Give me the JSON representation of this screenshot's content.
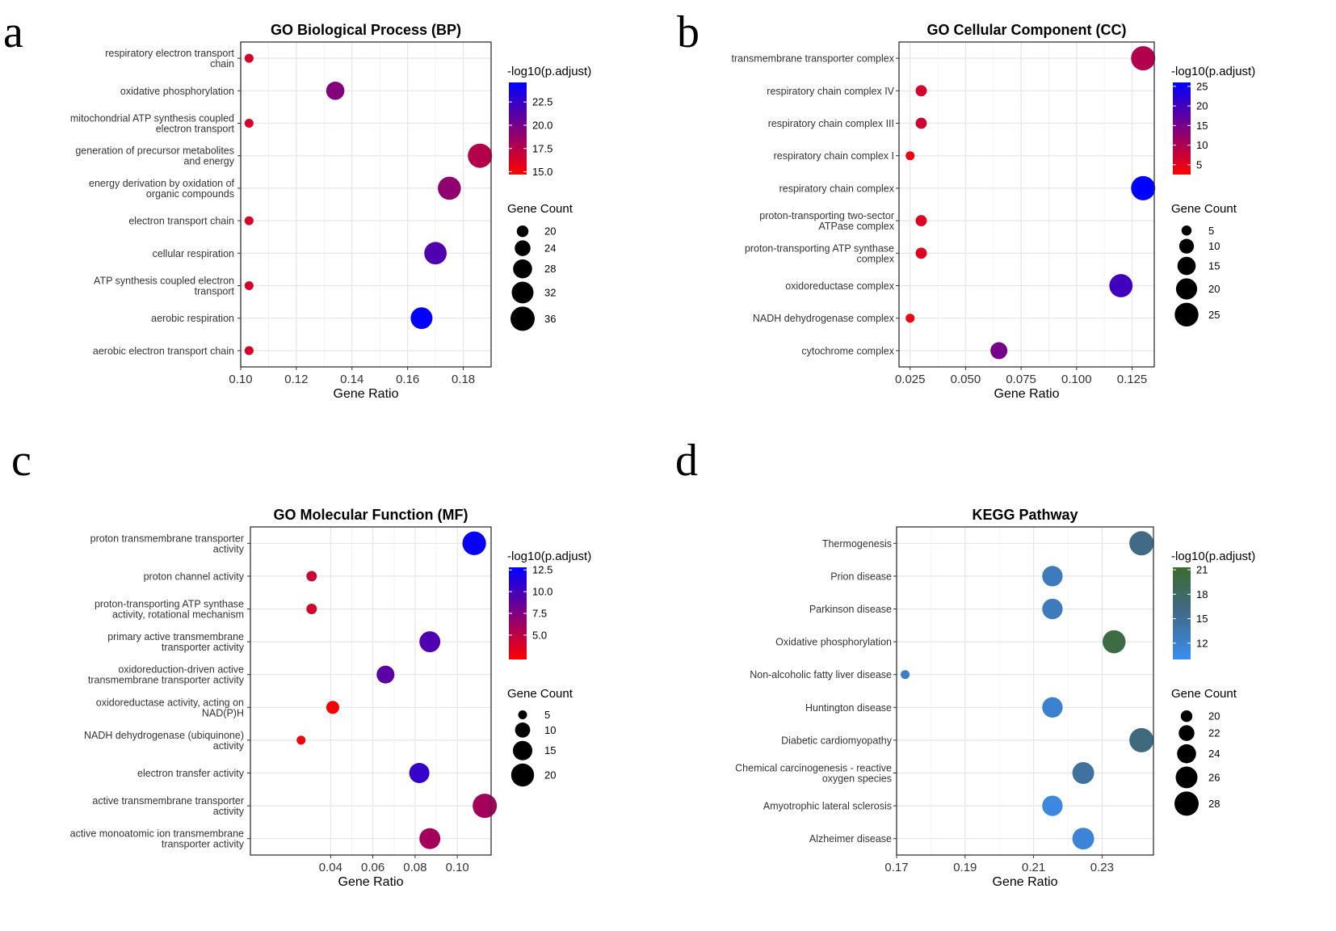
{
  "chart_data": [
    {
      "type": "scatter",
      "panel_label": "a",
      "title": "GO Biological Process (BP)",
      "xlabel": "Gene Ratio",
      "xlim": [
        0.1,
        0.19
      ],
      "xticks": [
        0.1,
        0.12,
        0.14,
        0.16,
        0.18
      ],
      "xtick_labels": [
        "0.10",
        "0.12",
        "0.14",
        "0.16",
        "0.18"
      ],
      "categories": [
        [
          "respiratory electron transport",
          "chain"
        ],
        [
          "oxidative phosphorylation"
        ],
        [
          "mitochondrial ATP synthesis coupled",
          "electron transport"
        ],
        [
          "generation of precursor metabolites",
          "and energy"
        ],
        [
          "energy derivation by oxidation of",
          "organic compounds"
        ],
        [
          "electron transport chain"
        ],
        [
          "cellular respiration"
        ],
        [
          "ATP synthesis coupled electron",
          "transport"
        ],
        [
          "aerobic respiration"
        ],
        [
          "aerobic electron transport chain"
        ]
      ],
      "x": [
        0.103,
        0.134,
        0.103,
        0.186,
        0.175,
        0.103,
        0.17,
        0.103,
        0.165,
        0.103
      ],
      "count": [
        18,
        27,
        18,
        36,
        34,
        18,
        33,
        18,
        32,
        18
      ],
      "color_value": [
        16.2,
        19.5,
        16.3,
        17.6,
        19.0,
        16.2,
        21.5,
        16.3,
        24.5,
        16.2
      ],
      "color_legend": {
        "title": "-log10(p.adjust)",
        "min": 14.7,
        "max": 24.6,
        "ticks": [
          15.0,
          17.5,
          20.0,
          22.5
        ],
        "tick_labels": [
          "15.0",
          "17.5",
          "20.0",
          "22.5"
        ],
        "low_color": "#ff0000",
        "high_color": "#0000ff"
      },
      "size_legend": {
        "title": "Gene Count",
        "values": [
          20,
          24,
          28,
          32,
          36
        ],
        "labels": [
          "20",
          "24",
          "28",
          "32",
          "36"
        ],
        "range": [
          18,
          36
        ]
      }
    },
    {
      "type": "scatter",
      "panel_label": "b",
      "title": "GO Cellular Component (CC)",
      "xlabel": "Gene Ratio",
      "xlim": [
        0.02,
        0.135
      ],
      "xticks": [
        0.025,
        0.05,
        0.075,
        0.1,
        0.125
      ],
      "xtick_labels": [
        "0.025",
        "0.050",
        "0.075",
        "0.100",
        "0.125"
      ],
      "categories": [
        [
          "transmembrane transporter complex"
        ],
        [
          "respiratory chain complex IV"
        ],
        [
          "respiratory chain complex III"
        ],
        [
          "respiratory chain complex I"
        ],
        [
          "respiratory chain complex"
        ],
        [
          "proton-transporting two-sector",
          "ATPase complex"
        ],
        [
          "proton-transporting ATP synthase",
          "complex"
        ],
        [
          "oxidoreductase complex"
        ],
        [
          "NADH dehydrogenase complex"
        ],
        [
          "cytochrome complex"
        ]
      ],
      "x": [
        0.13,
        0.03,
        0.03,
        0.025,
        0.13,
        0.03,
        0.03,
        0.12,
        0.025,
        0.065
      ],
      "count": [
        26,
        6,
        6,
        4,
        26,
        6,
        6,
        24,
        4,
        13
      ],
      "color_value": [
        9.5,
        6.5,
        7.0,
        4.0,
        26.0,
        5.5,
        5.5,
        20.0,
        4.0,
        15.0
      ],
      "color_legend": {
        "title": "-log10(p.adjust)",
        "min": 2.5,
        "max": 26.0,
        "ticks": [
          5,
          10,
          15,
          20,
          25
        ],
        "tick_labels": [
          "5",
          "10",
          "15",
          "20",
          "25"
        ],
        "low_color": "#ff0000",
        "high_color": "#0000ff"
      },
      "size_legend": {
        "title": "Gene Count",
        "values": [
          5,
          10,
          15,
          20,
          25
        ],
        "labels": [
          "5",
          "10",
          "15",
          "20",
          "25"
        ],
        "range": [
          4,
          26
        ]
      }
    },
    {
      "type": "scatter",
      "panel_label": "c",
      "title": "GO Molecular Function (MF)",
      "xlabel": "Gene Ratio",
      "xlim": [
        0.002,
        0.116
      ],
      "xticks": [
        0.04,
        0.06,
        0.08,
        0.1
      ],
      "xtick_labels": [
        "0.04",
        "0.06",
        "0.08",
        "0.10"
      ],
      "categories": [
        [
          "proton transmembrane transporter",
          "activity"
        ],
        [
          "proton channel activity"
        ],
        [
          "proton-transporting ATP synthase",
          "activity, rotational mechanism"
        ],
        [
          "primary active transmembrane",
          "transporter activity"
        ],
        [
          "oxidoreduction-driven active",
          "transmembrane transporter activity"
        ],
        [
          "oxidoreductase activity, acting on",
          "NAD(P)H"
        ],
        [
          "NADH dehydrogenase (ubiquinone)",
          "activity"
        ],
        [
          "electron transfer activity"
        ],
        [
          "active transmembrane transporter",
          "activity"
        ],
        [
          "active monoatomic ion transmembrane",
          "transporter activity"
        ]
      ],
      "x": [
        0.108,
        0.031,
        0.031,
        0.087,
        0.066,
        0.041,
        0.026,
        0.082,
        0.113,
        0.087
      ],
      "count": [
        21,
        6,
        6,
        17,
        13,
        8,
        5,
        16,
        22,
        17
      ],
      "color_value": [
        12.5,
        4.5,
        4.0,
        9.5,
        9.0,
        2.5,
        2.5,
        10.5,
        6.0,
        6.0
      ],
      "color_legend": {
        "title": "-log10(p.adjust)",
        "min": 2.2,
        "max": 12.8,
        "ticks": [
          5.0,
          7.5,
          10.0,
          12.5
        ],
        "tick_labels": [
          "5.0",
          "7.5",
          "10.0",
          "12.5"
        ],
        "low_color": "#ff0000",
        "high_color": "#0000ff"
      },
      "size_legend": {
        "title": "Gene Count",
        "values": [
          5,
          10,
          15,
          20
        ],
        "labels": [
          "5",
          "10",
          "15",
          "20"
        ],
        "range": [
          5,
          22
        ]
      }
    },
    {
      "type": "scatter",
      "panel_label": "d",
      "title": "KEGG Pathway",
      "xlabel": "Gene Ratio",
      "xlim": [
        0.17,
        0.245
      ],
      "xticks": [
        0.17,
        0.19,
        0.21,
        0.23
      ],
      "xtick_labels": [
        "0.17",
        "0.19",
        "0.21",
        "0.23"
      ],
      "categories": [
        [
          "Thermogenesis"
        ],
        [
          "Prion disease"
        ],
        [
          "Parkinson disease"
        ],
        [
          "Oxidative phosphorylation"
        ],
        [
          "Non-alcoholic fatty liver disease"
        ],
        [
          "Huntington disease"
        ],
        [
          "Diabetic cardiomyopathy"
        ],
        [
          "Chemical carcinogenesis - reactive",
          "oxygen species"
        ],
        [
          "Amyotrophic lateral sclerosis"
        ],
        [
          "Alzheimer disease"
        ]
      ],
      "x": [
        0.2415,
        0.2155,
        0.2155,
        0.2335,
        0.1725,
        0.2155,
        0.2415,
        0.2245,
        0.2155,
        0.2245
      ],
      "count": [
        28,
        25,
        25,
        27,
        19,
        25,
        28,
        26,
        25,
        26
      ],
      "color_value": [
        16.0,
        13.0,
        13.0,
        20.0,
        12.5,
        12.0,
        16.5,
        14.5,
        11.0,
        11.5
      ],
      "color_legend": {
        "title": "-log10(p.adjust)",
        "min": 10.0,
        "max": 21.3,
        "ticks": [
          12,
          15,
          18,
          21
        ],
        "tick_labels": [
          "12",
          "15",
          "18",
          "21"
        ],
        "low_color": "#3a8ef3",
        "mid_color": "#406a8c",
        "high_color": "#3b6b2e"
      },
      "size_legend": {
        "title": "Gene Count",
        "values": [
          20,
          22,
          24,
          26,
          28
        ],
        "labels": [
          "20",
          "22",
          "24",
          "26",
          "28"
        ],
        "range": [
          19,
          28
        ]
      }
    }
  ]
}
